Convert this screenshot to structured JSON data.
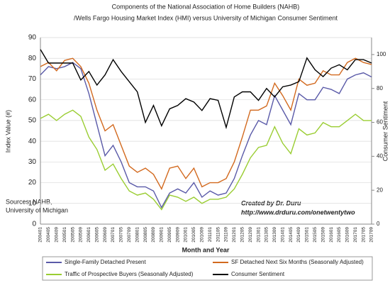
{
  "chart_data": {
    "type": "line",
    "title": [
      "Components  of the National Association of Home Builders (NAHB)",
      "/Wells Fargo Housing Market Index (HMI) versus University of Michigan Consumer Sentiment"
    ],
    "x_label": "Month  and Year",
    "y_label": "Index Value (#)",
    "y2_label": "Consumer Sentiment",
    "sources": [
      "Sources: NAHB,",
      "University of Michigan"
    ],
    "credit": [
      "Created by Dr. Duru",
      "http://www.drduru.com/onetwentytwo"
    ],
    "categories": [
      "200401",
      "200405",
      "200409",
      "200501",
      "200505",
      "200509",
      "200601",
      "200605",
      "200609",
      "200701",
      "200705",
      "200709",
      "200801",
      "200805",
      "200809",
      "200901",
      "200905",
      "200909",
      "201001",
      "201005",
      "201009",
      "201101",
      "201105",
      "201109",
      "201201",
      "201205",
      "201209",
      "201301",
      "201305",
      "201309",
      "201401",
      "201405",
      "201409",
      "201501",
      "201505",
      "201509",
      "201601",
      "201605",
      "201609",
      "201701",
      "201705",
      "201709"
    ],
    "ylim": [
      0,
      90
    ],
    "yticks": [
      0,
      10,
      20,
      30,
      40,
      50,
      60,
      70,
      80,
      90
    ],
    "y2lim": [
      0,
      110
    ],
    "y2ticks": [
      0,
      20,
      40,
      60,
      80,
      100
    ],
    "grid": true,
    "series": [
      {
        "name": "Single-Family Detached Present",
        "color": "#5a5aa8",
        "values": [
          72,
          76,
          75,
          76,
          78,
          75,
          63,
          48,
          33,
          38,
          30,
          20,
          18,
          18,
          16,
          8,
          15,
          17,
          15,
          20,
          13,
          16,
          14,
          15,
          22,
          33,
          43,
          50,
          48,
          62,
          55,
          48,
          63,
          60,
          60,
          66,
          65,
          63,
          70,
          72,
          73,
          71
        ]
      },
      {
        "name": "SF Detached Next Six Months (Seasonally Adjusted)",
        "color": "#d2691e",
        "values": [
          76,
          78,
          74,
          79,
          80,
          76,
          68,
          55,
          45,
          48,
          38,
          28,
          25,
          27,
          24,
          17,
          27,
          28,
          22,
          27,
          18,
          20,
          20,
          22,
          30,
          42,
          55,
          55,
          57,
          68,
          62,
          55,
          70,
          67,
          68,
          74,
          72,
          72,
          78,
          80,
          78,
          77
        ]
      },
      {
        "name": "Traffic of Prospective Buyers (Seasonally Adjusted)",
        "color": "#9acd32",
        "values": [
          51,
          53,
          50,
          53,
          55,
          52,
          42,
          36,
          26,
          29,
          22,
          16,
          14,
          15,
          12,
          7,
          14,
          13,
          11,
          13,
          10,
          12,
          12,
          13,
          17,
          24,
          32,
          37,
          38,
          47,
          39,
          34,
          46,
          43,
          44,
          49,
          47,
          47,
          50,
          53,
          50,
          50
        ]
      },
      {
        "name": "Consumer Sentiment",
        "color": "#000000",
        "axis": "y2",
        "values": [
          103,
          95,
          95,
          95,
          95,
          85,
          90,
          82,
          88,
          97,
          90,
          84,
          78,
          60,
          70,
          58,
          68,
          70,
          74,
          72,
          67,
          74,
          73,
          57,
          75,
          78,
          78,
          73,
          80,
          75,
          81,
          82,
          84,
          98,
          91,
          87,
          92,
          94,
          91,
          97,
          97,
          95
        ]
      }
    ]
  }
}
